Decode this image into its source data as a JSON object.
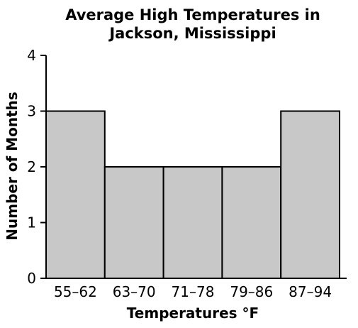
{
  "chart_data": {
    "type": "bar",
    "title": [
      "Average High Temperatures in",
      "Jackson, Mississippi"
    ],
    "xlabel": "Temperatures °F",
    "ylabel": "Number of Months",
    "categories": [
      "55–62",
      "63–70",
      "71–78",
      "79–86",
      "87–94"
    ],
    "values": [
      3,
      2,
      2,
      2,
      3
    ],
    "ylim": [
      0,
      4
    ],
    "yticks": [
      "0",
      "1",
      "2",
      "3",
      "4"
    ],
    "grid": false,
    "bar_color": "#c8c8c8",
    "edge_color": "#000000"
  }
}
